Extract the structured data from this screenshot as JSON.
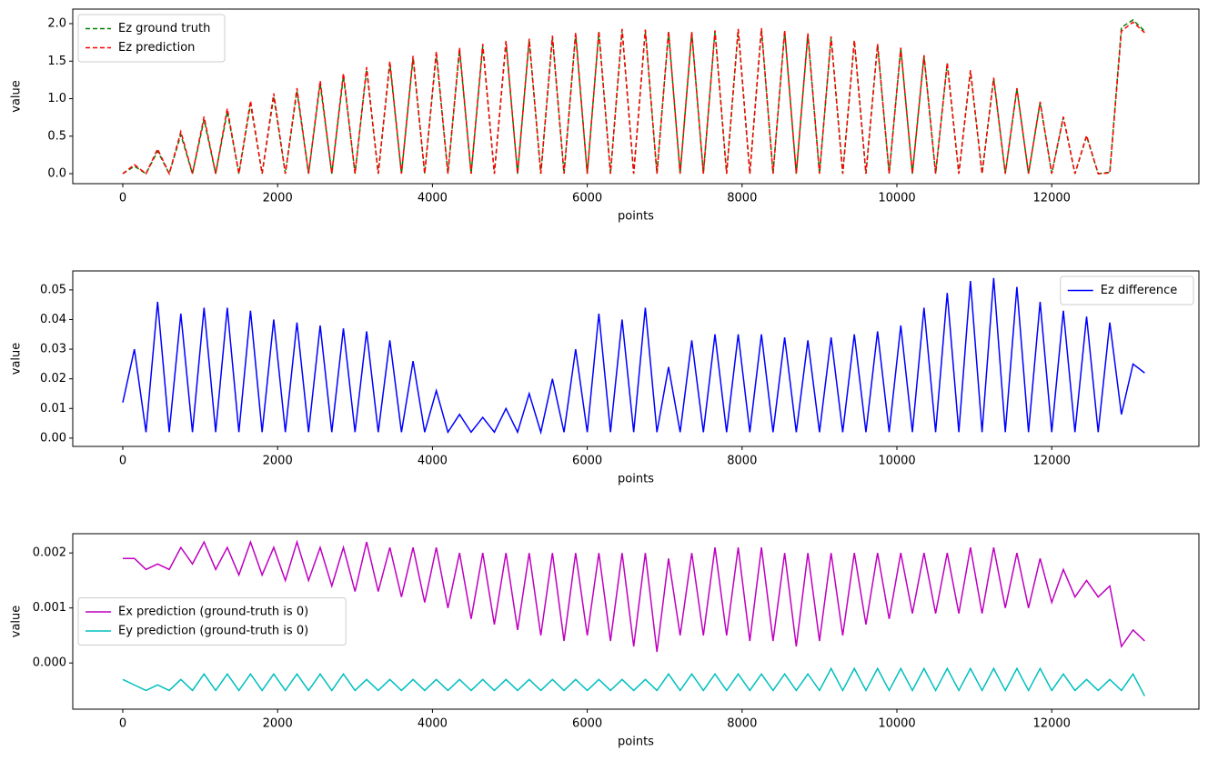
{
  "chart_data": [
    {
      "type": "line",
      "xlabel": "points",
      "ylabel": "value",
      "legend": "upper left",
      "xlim": [
        -646,
        13901
      ],
      "ylim": [
        -0.133,
        2.194
      ],
      "xticks": [
        0,
        2000,
        4000,
        6000,
        8000,
        10000,
        12000
      ],
      "yticks": [
        {
          "value": 0,
          "label": "0.0"
        },
        0.5,
        {
          "value": 1,
          "label": "1.0"
        },
        1.5,
        {
          "value": 2,
          "label": "2.0"
        }
      ],
      "x": [
        0,
        150,
        300,
        450,
        600,
        750,
        900,
        1050,
        1200,
        1350,
        1500,
        1650,
        1800,
        1950,
        2100,
        2250,
        2400,
        2550,
        2700,
        2850,
        3000,
        3150,
        3300,
        3450,
        3600,
        3750,
        3900,
        4050,
        4200,
        4350,
        4500,
        4650,
        4800,
        4950,
        5100,
        5250,
        5400,
        5550,
        5700,
        5850,
        6000,
        6150,
        6300,
        6450,
        6600,
        6750,
        6900,
        7050,
        7200,
        7350,
        7500,
        7650,
        7800,
        7950,
        8100,
        8250,
        8400,
        8550,
        8700,
        8850,
        9000,
        9150,
        9300,
        9450,
        9600,
        9750,
        9900,
        10050,
        10200,
        10350,
        10500,
        10650,
        10800,
        10950,
        11100,
        11250,
        11400,
        11550,
        11700,
        11850,
        12000,
        12150,
        12300,
        12450,
        12600,
        12750,
        12900,
        13050,
        13200
      ],
      "series": [
        {
          "name": "Ez ground truth",
          "color": "#008000",
          "dashed": true,
          "values": [
            0,
            0.1,
            0,
            0.3,
            0,
            0.52,
            0,
            0.72,
            0,
            0.83,
            0,
            0.93,
            0,
            1.03,
            0,
            1.1,
            0,
            1.2,
            0,
            1.3,
            0,
            1.39,
            0,
            1.47,
            0,
            1.54,
            0,
            1.6,
            0,
            1.65,
            0,
            1.7,
            0,
            1.75,
            0,
            1.78,
            0,
            1.82,
            0,
            1.86,
            0,
            1.89,
            0,
            1.92,
            0,
            1.91,
            0,
            1.89,
            0,
            1.88,
            0,
            1.9,
            0,
            1.92,
            0,
            1.93,
            0,
            1.9,
            0,
            1.86,
            0,
            1.82,
            0,
            1.77,
            0,
            1.72,
            0,
            1.67,
            0,
            1.57,
            0,
            1.47,
            0,
            1.37,
            0,
            1.27,
            0,
            1.13,
            0,
            0.95,
            0,
            0.75,
            0,
            0.5,
            0,
            0.02,
            1.95,
            2.05,
            1.9
          ]
        },
        {
          "name": "Ez prediction",
          "color": "#ff0000",
          "dashed": true,
          "values": [
            0,
            0.12,
            0,
            0.33,
            0,
            0.56,
            0,
            0.76,
            0,
            0.87,
            0,
            0.97,
            0,
            1.07,
            0,
            1.14,
            0,
            1.24,
            0,
            1.34,
            0,
            1.42,
            0,
            1.5,
            0,
            1.57,
            0,
            1.63,
            0,
            1.68,
            0,
            1.73,
            0,
            1.77,
            0,
            1.8,
            0,
            1.84,
            0,
            1.88,
            0,
            1.9,
            0,
            1.93,
            0,
            1.92,
            0,
            1.9,
            0,
            1.89,
            0,
            1.91,
            0,
            1.93,
            0,
            1.94,
            0,
            1.91,
            0,
            1.87,
            0,
            1.83,
            0,
            1.78,
            0,
            1.73,
            0,
            1.68,
            0,
            1.58,
            0,
            1.48,
            0,
            1.38,
            0,
            1.28,
            0,
            1.14,
            0,
            0.96,
            0,
            0.76,
            0,
            0.51,
            0,
            0.01,
            1.9,
            2.02,
            1.88
          ]
        }
      ]
    },
    {
      "type": "line",
      "xlabel": "points",
      "ylabel": "value",
      "legend": "upper right",
      "xlim": [
        -646,
        13901
      ],
      "ylim": [
        -0.0028,
        0.0564
      ],
      "xticks": [
        0,
        2000,
        4000,
        6000,
        8000,
        10000,
        12000
      ],
      "yticks": [
        {
          "value": 0,
          "label": "0.00"
        },
        0.01,
        0.02,
        0.03,
        0.04,
        0.05
      ],
      "x": [
        0,
        150,
        300,
        450,
        600,
        750,
        900,
        1050,
        1200,
        1350,
        1500,
        1650,
        1800,
        1950,
        2100,
        2250,
        2400,
        2550,
        2700,
        2850,
        3000,
        3150,
        3300,
        3450,
        3600,
        3750,
        3900,
        4050,
        4200,
        4350,
        4500,
        4650,
        4800,
        4950,
        5100,
        5250,
        5400,
        5550,
        5700,
        5850,
        6000,
        6150,
        6300,
        6450,
        6600,
        6750,
        6900,
        7050,
        7200,
        7350,
        7500,
        7650,
        7800,
        7950,
        8100,
        8250,
        8400,
        8550,
        8700,
        8850,
        9000,
        9150,
        9300,
        9450,
        9600,
        9750,
        9900,
        10050,
        10200,
        10350,
        10500,
        10650,
        10800,
        10950,
        11100,
        11250,
        11400,
        11550,
        11700,
        11850,
        12000,
        12150,
        12300,
        12450,
        12600,
        12750,
        12900,
        13050,
        13200
      ],
      "series": [
        {
          "name": "Ez difference",
          "color": "#0000ff",
          "dashed": false,
          "values": [
            0.012,
            0.03,
            0.002,
            0.046,
            0.002,
            0.042,
            0.002,
            0.044,
            0.002,
            0.044,
            0.002,
            0.043,
            0.002,
            0.04,
            0.002,
            0.039,
            0.002,
            0.038,
            0.002,
            0.037,
            0.002,
            0.036,
            0.002,
            0.033,
            0.002,
            0.026,
            0.002,
            0.016,
            0.002,
            0.008,
            0.002,
            0.007,
            0.002,
            0.01,
            0.002,
            0.015,
            0.002,
            0.02,
            0.002,
            0.03,
            0.002,
            0.042,
            0.002,
            0.04,
            0.002,
            0.044,
            0.002,
            0.024,
            0.002,
            0.033,
            0.002,
            0.035,
            0.002,
            0.035,
            0.002,
            0.035,
            0.002,
            0.034,
            0.002,
            0.033,
            0.002,
            0.034,
            0.002,
            0.035,
            0.002,
            0.036,
            0.002,
            0.038,
            0.002,
            0.044,
            0.002,
            0.049,
            0.002,
            0.053,
            0.002,
            0.054,
            0.002,
            0.051,
            0.002,
            0.046,
            0.002,
            0.043,
            0.002,
            0.041,
            0.002,
            0.039,
            0.008,
            0.025,
            0.022
          ]
        }
      ]
    },
    {
      "type": "line",
      "xlabel": "points",
      "ylabel": "value",
      "legend": "center left",
      "xlim": [
        -646,
        13901
      ],
      "ylim": [
        -0.00084,
        0.00235
      ],
      "xticks": [
        0,
        2000,
        4000,
        6000,
        8000,
        10000,
        12000
      ],
      "yticks": [
        {
          "value": 0,
          "label": "0.000"
        },
        0.001,
        0.002
      ],
      "x": [
        0,
        150,
        300,
        450,
        600,
        750,
        900,
        1050,
        1200,
        1350,
        1500,
        1650,
        1800,
        1950,
        2100,
        2250,
        2400,
        2550,
        2700,
        2850,
        3000,
        3150,
        3300,
        3450,
        3600,
        3750,
        3900,
        4050,
        4200,
        4350,
        4500,
        4650,
        4800,
        4950,
        5100,
        5250,
        5400,
        5550,
        5700,
        5850,
        6000,
        6150,
        6300,
        6450,
        6600,
        6750,
        6900,
        7050,
        7200,
        7350,
        7500,
        7650,
        7800,
        7950,
        8100,
        8250,
        8400,
        8550,
        8700,
        8850,
        9000,
        9150,
        9300,
        9450,
        9600,
        9750,
        9900,
        10050,
        10200,
        10350,
        10500,
        10650,
        10800,
        10950,
        11100,
        11250,
        11400,
        11550,
        11700,
        11850,
        12000,
        12150,
        12300,
        12450,
        12600,
        12750,
        12900,
        13050,
        13200
      ],
      "series": [
        {
          "name": "Ex prediction (ground-truth is 0)",
          "color": "#bf00bf",
          "dashed": false,
          "values": [
            0.0019,
            0.0019,
            0.0017,
            0.0018,
            0.0017,
            0.0021,
            0.0018,
            0.0022,
            0.0017,
            0.0021,
            0.0016,
            0.0022,
            0.0016,
            0.0021,
            0.0015,
            0.0022,
            0.0015,
            0.0021,
            0.0014,
            0.0021,
            0.0013,
            0.0022,
            0.0013,
            0.0021,
            0.0012,
            0.0021,
            0.0011,
            0.0021,
            0.001,
            0.002,
            0.0008,
            0.002,
            0.0007,
            0.002,
            0.0006,
            0.002,
            0.0005,
            0.002,
            0.0004,
            0.002,
            0.0005,
            0.002,
            0.0004,
            0.002,
            0.0003,
            0.002,
            0.0002,
            0.0019,
            0.0005,
            0.002,
            0.0005,
            0.0021,
            0.0005,
            0.0021,
            0.0004,
            0.0021,
            0.0004,
            0.002,
            0.0003,
            0.002,
            0.0004,
            0.002,
            0.0005,
            0.002,
            0.0007,
            0.002,
            0.0008,
            0.002,
            0.0009,
            0.002,
            0.0009,
            0.002,
            0.0009,
            0.0021,
            0.0009,
            0.0021,
            0.001,
            0.002,
            0.001,
            0.0019,
            0.0011,
            0.0017,
            0.0012,
            0.0015,
            0.0012,
            0.0014,
            0.0003,
            0.0006,
            0.0004
          ]
        },
        {
          "name": "Ey prediction (ground-truth is 0)",
          "color": "#00bfbf",
          "dashed": false,
          "values": [
            -0.0003,
            -0.0004,
            -0.0005,
            -0.0004,
            -0.0005,
            -0.0003,
            -0.0005,
            -0.0002,
            -0.0005,
            -0.0002,
            -0.0005,
            -0.0002,
            -0.0005,
            -0.0002,
            -0.0005,
            -0.0002,
            -0.0005,
            -0.0002,
            -0.0005,
            -0.0002,
            -0.0005,
            -0.0003,
            -0.0005,
            -0.0003,
            -0.0005,
            -0.0003,
            -0.0005,
            -0.0003,
            -0.0005,
            -0.0003,
            -0.0005,
            -0.0003,
            -0.0005,
            -0.0003,
            -0.0005,
            -0.0003,
            -0.0005,
            -0.0003,
            -0.0005,
            -0.0003,
            -0.0005,
            -0.0003,
            -0.0005,
            -0.0003,
            -0.0005,
            -0.0003,
            -0.0005,
            -0.0002,
            -0.0005,
            -0.0002,
            -0.0005,
            -0.0002,
            -0.0005,
            -0.0002,
            -0.0005,
            -0.0002,
            -0.0005,
            -0.0002,
            -0.0005,
            -0.0002,
            -0.0005,
            -0.0001,
            -0.0005,
            -0.0001,
            -0.0005,
            -0.0001,
            -0.0005,
            -0.0001,
            -0.0005,
            -0.0001,
            -0.0005,
            -0.0001,
            -0.0005,
            -0.0001,
            -0.0005,
            -0.0001,
            -0.0005,
            -0.0001,
            -0.0005,
            -0.0001,
            -0.0005,
            -0.0002,
            -0.0005,
            -0.0003,
            -0.0005,
            -0.0003,
            -0.0005,
            -0.0002,
            -0.0006
          ]
        }
      ]
    }
  ]
}
